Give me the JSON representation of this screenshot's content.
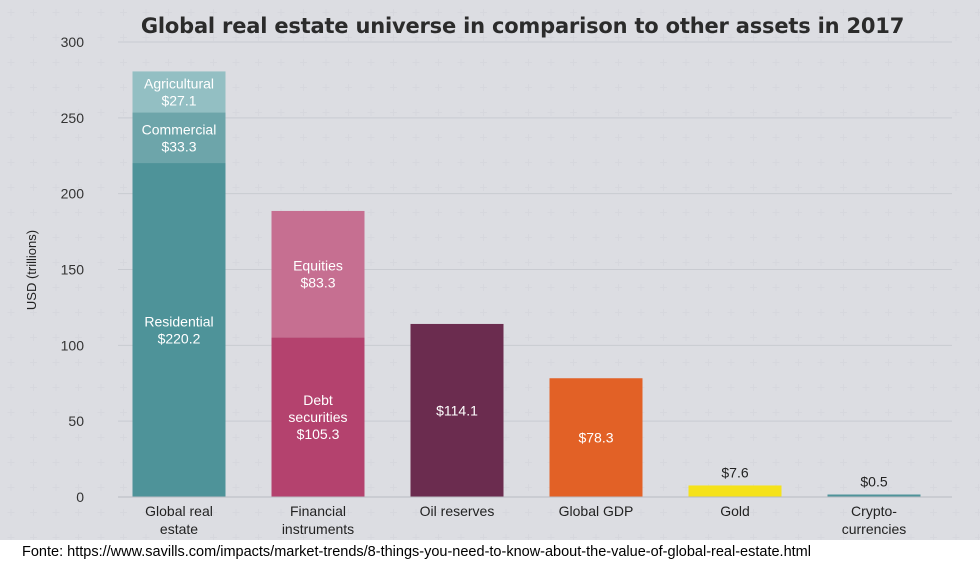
{
  "title": "Global real estate universe in comparison to other assets in 2017",
  "source_note": "Fonte: https://www.savills.com/impacts/market-trends/8-things-you-need-to-know-about-the-value-of-global-real-estate.html",
  "chart_data": {
    "type": "bar",
    "stacked": true,
    "title": "Global real estate universe in comparison to other assets in 2017",
    "ylabel": "USD (trillions)",
    "xlabel": "",
    "ylim": [
      0,
      300
    ],
    "yticks": [
      "0",
      "50",
      "100",
      "150",
      "200",
      "250",
      "300"
    ],
    "grid": true,
    "categories": [
      [
        "Global real",
        "estate"
      ],
      [
        "Financial",
        "instruments"
      ],
      [
        "Oil reserves"
      ],
      [
        "Global GDP"
      ],
      [
        "Gold"
      ],
      [
        "Crypto-",
        "currencies"
      ]
    ],
    "bars": [
      {
        "segments": [
          {
            "label": [
              "Residential",
              "$220.2"
            ],
            "value": 220.2,
            "color": "#4e9399"
          },
          {
            "label": [
              "Commercial",
              "$33.3"
            ],
            "value": 33.3,
            "color": "#6da5aa"
          },
          {
            "label": [
              "Agricultural",
              "$27.1"
            ],
            "value": 27.1,
            "color": "#93bfc3"
          }
        ]
      },
      {
        "segments": [
          {
            "label": [
              "Debt",
              "securities",
              "$105.3"
            ],
            "value": 105.3,
            "color": "#b4426e"
          },
          {
            "label": [
              "Equities",
              "$83.3"
            ],
            "value": 83.3,
            "color": "#c66f91"
          }
        ]
      },
      {
        "segments": [
          {
            "label": [
              "$114.1"
            ],
            "value": 114.1,
            "color": "#6b2c4f"
          }
        ]
      },
      {
        "segments": [
          {
            "label": [
              "$78.3"
            ],
            "value": 78.3,
            "color": "#e26126"
          }
        ]
      },
      {
        "segments": [
          {
            "label": [
              "$7.6"
            ],
            "value": 7.6,
            "color": "#f5e21a",
            "label_outside": true
          }
        ]
      },
      {
        "segments": [
          {
            "label": [
              "$0.5"
            ],
            "value": 0.5,
            "color": "#4e9399",
            "label_outside": true
          }
        ]
      }
    ]
  }
}
